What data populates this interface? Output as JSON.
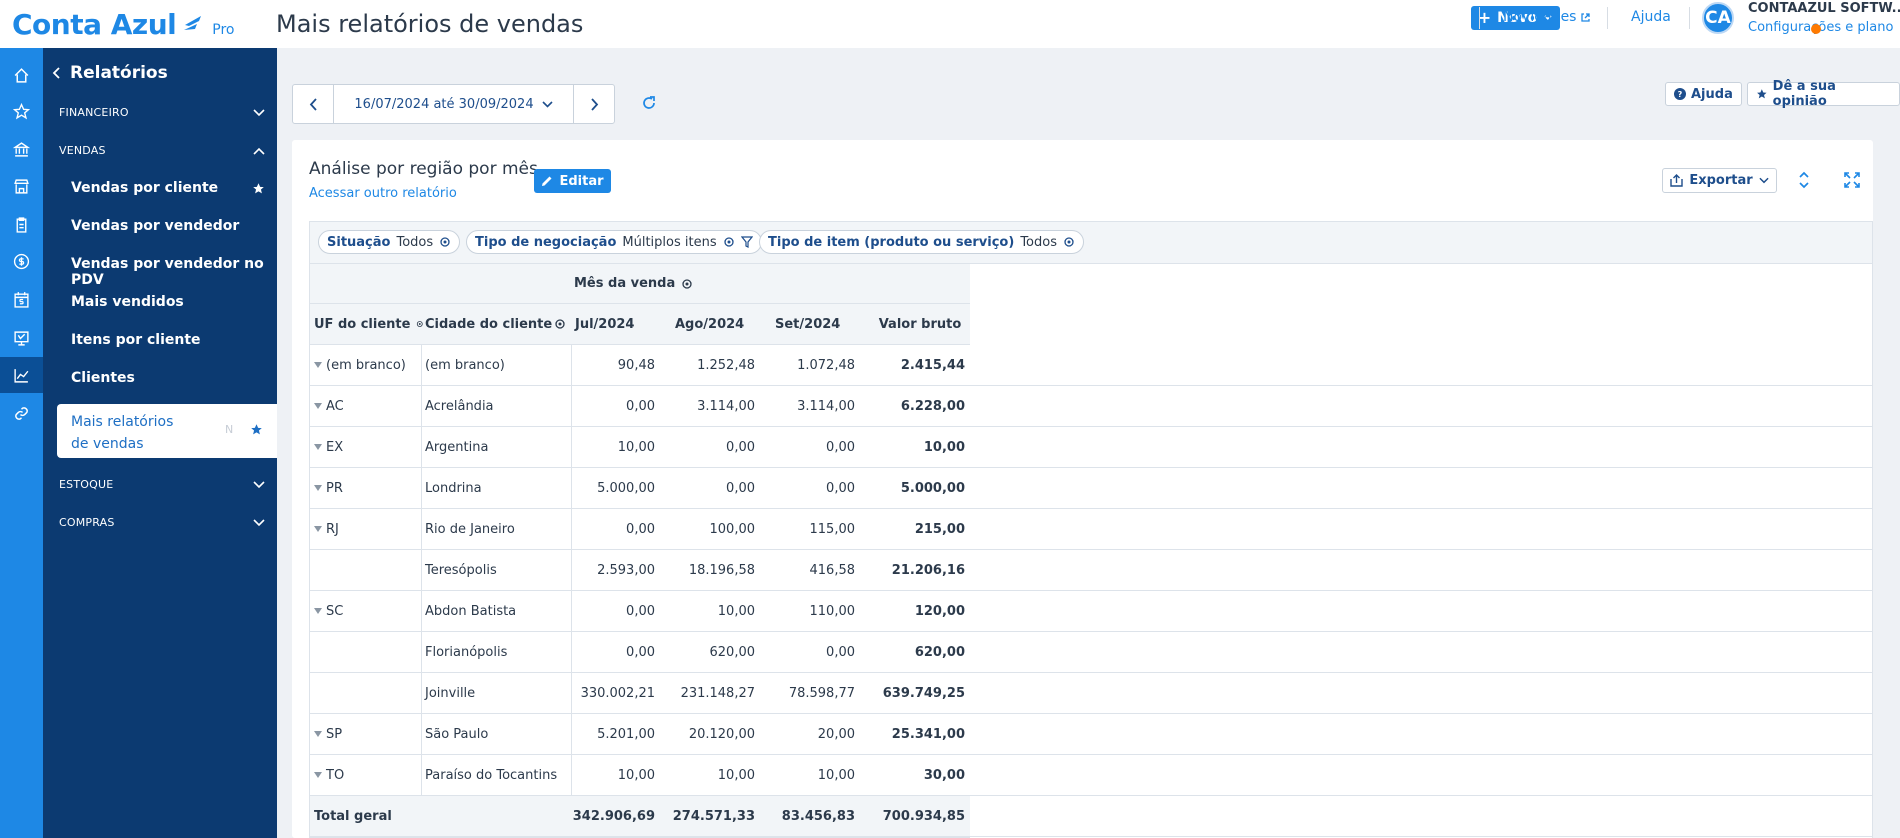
{
  "header": {
    "logo_text": "Conta Azul",
    "logo_badge": "Pro",
    "page_title": "Mais relatórios de vendas",
    "new_button": "Novo",
    "novidades": "Novidades",
    "ajuda": "Ajuda",
    "avatar_initials": "CA",
    "company_name": "CONTAAZUL SOFTW...",
    "config_link": "Configurações e plano"
  },
  "rail": {
    "icons": [
      "home-icon",
      "star-icon",
      "bank-icon",
      "store-icon",
      "clipboard-icon",
      "dollar-icon",
      "calendar-dollar-icon",
      "register-icon",
      "chart-line-icon",
      "link-icon"
    ],
    "active_index": 8
  },
  "sidebar": {
    "title": "Relatórios",
    "sections": {
      "financeiro": "FINANCEIRO",
      "vendas": "VENDAS",
      "estoque": "ESTOQUE",
      "compras": "COMPRAS"
    },
    "items": [
      {
        "label": "Vendas por cliente",
        "starred": true
      },
      {
        "label": "Vendas por vendedor",
        "starred": false
      },
      {
        "label": "Vendas por vendedor no PDV",
        "starred": false
      },
      {
        "label": "Mais vendidos",
        "starred": false
      },
      {
        "label": "Itens por cliente",
        "starred": false
      },
      {
        "label": "Clientes",
        "starred": false
      }
    ],
    "active_item": {
      "label": "Mais relatórios de vendas",
      "badge": "N"
    }
  },
  "toolbar": {
    "date_range": "16/07/2024 até 30/09/2024",
    "help_button": "Ajuda",
    "feedback_button": "Dê a sua opinião"
  },
  "report": {
    "title": "Análise por região por mês",
    "edit_button": "Editar",
    "other_report_link": "Acessar outro relatório",
    "export_button": "Exportar"
  },
  "filters": [
    {
      "label": "Situação",
      "value": "Todos"
    },
    {
      "label": "Tipo de negociação",
      "value": "Múltiplos itens"
    },
    {
      "label": "Tipo de item (produto ou serviço)",
      "value": "Todos"
    }
  ],
  "table": {
    "group_header": "Mês da venda",
    "columns": [
      "UF do cliente",
      "Cidade do cliente",
      "Jul/2024",
      "Ago/2024",
      "Set/2024",
      "Valor bruto"
    ],
    "rows": [
      {
        "uf": "(em branco)",
        "city": "(em branco)",
        "jul": "90,48",
        "ago": "1.252,48",
        "set": "1.072,48",
        "total": "2.415,44"
      },
      {
        "uf": "AC",
        "city": "Acrelândia",
        "jul": "0,00",
        "ago": "3.114,00",
        "set": "3.114,00",
        "total": "6.228,00"
      },
      {
        "uf": "EX",
        "city": "Argentina",
        "jul": "10,00",
        "ago": "0,00",
        "set": "0,00",
        "total": "10,00"
      },
      {
        "uf": "PR",
        "city": "Londrina",
        "jul": "5.000,00",
        "ago": "0,00",
        "set": "0,00",
        "total": "5.000,00"
      },
      {
        "uf": "RJ",
        "city": "Rio de Janeiro",
        "jul": "0,00",
        "ago": "100,00",
        "set": "115,00",
        "total": "215,00"
      },
      {
        "uf": "",
        "city": "Teresópolis",
        "jul": "2.593,00",
        "ago": "18.196,58",
        "set": "416,58",
        "total": "21.206,16"
      },
      {
        "uf": "SC",
        "city": "Abdon Batista",
        "jul": "0,00",
        "ago": "10,00",
        "set": "110,00",
        "total": "120,00"
      },
      {
        "uf": "",
        "city": "Florianópolis",
        "jul": "0,00",
        "ago": "620,00",
        "set": "0,00",
        "total": "620,00"
      },
      {
        "uf": "",
        "city": "Joinville",
        "jul": "330.002,21",
        "ago": "231.148,27",
        "set": "78.598,77",
        "total": "639.749,25"
      },
      {
        "uf": "SP",
        "city": "São Paulo",
        "jul": "5.201,00",
        "ago": "20.120,00",
        "set": "20,00",
        "total": "25.341,00"
      },
      {
        "uf": "TO",
        "city": "Paraíso do Tocantins",
        "jul": "10,00",
        "ago": "10,00",
        "set": "10,00",
        "total": "30,00"
      }
    ],
    "total": {
      "label": "Total geral",
      "jul": "342.906,69",
      "ago": "274.571,33",
      "set": "83.456,83",
      "total": "700.934,85"
    }
  },
  "colors": {
    "brand_blue": "#1e88e5",
    "sidebar_navy": "#0c3a71",
    "notification_orange": "#ff7a00"
  }
}
